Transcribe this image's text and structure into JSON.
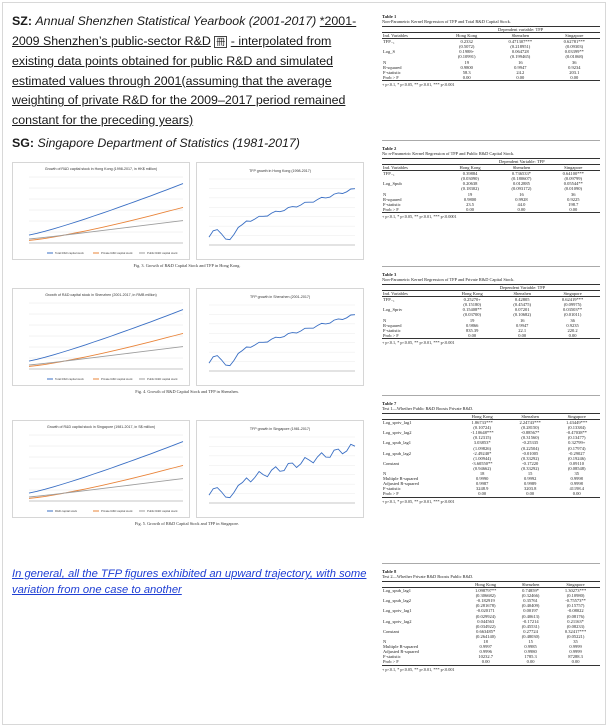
{
  "left": {
    "sz_label": "SZ:",
    "sz_source": "Annual Shenzhen Statistical Yearbook (2001-2017)",
    "sz_note_link": "*2001-2009 Shenzhen’s public-sector R&D",
    "sz_note_icon": "冊",
    "sz_note_rest": "- interpolated from existing data points obtained for public R&D and simulated estimated values through 2001(assuming that the average weighting of private R&D for the 2009–2017 period remained constant for the preceding years)",
    "sg_label": "SG:",
    "sg_source": "Singapore Department of Statistics (1981-2017)",
    "conclusion": "In general, all the TFP figures exhibited an upward trajectory, with some variation from one case to another"
  },
  "figures": [
    {
      "left_title": "Growth of R&D capital stock in Hong Kong (1998-2017, in HK$ million)",
      "right_title": "TFP growth in Hong Kong (1998-2017)",
      "caption": "Fig. 3.  Growth of R&D Capital Stock and TFP in Hong Kong.",
      "legend": [
        "Total R&D capital stock",
        "Private R&D capital stock",
        "Public R&D capital stock"
      ]
    },
    {
      "left_title": "Growth of R&D capital stock in Shenzhen (2001-2017, in RMB million)",
      "right_title": "TFP growth in Shenzhen (2001-2017)",
      "caption": "Fig. 4.  Growth of R&D Capital Stock and TFP in Shenzhen.",
      "legend": [
        "Total R&D capital stock",
        "Private R&D capital stock",
        "Public R&D capital stock"
      ]
    },
    {
      "left_title": "Growth of R&D capital stock in Singapore (1981-2017, in S$ million)",
      "right_title": "TFP growth in Singapore (1981-2017)",
      "caption": "Fig. 5.  Growth of R&D Capital Stock and TFP in Singapore.",
      "legend": [
        "R&D capital stock",
        "Private R&D capital stock",
        "Public R&D capital stock"
      ]
    }
  ],
  "colors": {
    "total": "#3a6fc4",
    "private": "#e9843a",
    "public": "#9e9e9e",
    "tfp": "#3a6fc4",
    "link": "#1f3fd4"
  },
  "tables": [
    {
      "title": "Table 1",
      "subtitle": "Non-Parametric Kernel Regression of TFP and Total R&D Capital Stock.",
      "dep": "Dependent variable: TFP",
      "cols": [
        "Ind. Variables",
        "Hong Kong",
        "Shenzhen",
        "Singapore"
      ],
      "rows": [
        [
          "TFP₋₁",
          "0.2332",
          "0.471307***",
          "0.62781***"
        ],
        [
          "",
          "(0.5072)",
          "(0.218951)",
          "(0.09303)"
        ],
        [
          "Log_S",
          "0.1988+",
          "0.064728",
          "0.03399**"
        ],
        [
          "",
          "(0.10991)",
          "(0.199465)",
          "(0.01068)"
        ],
        [
          "N",
          "19",
          "16",
          "36"
        ],
        [
          "R-squared",
          "0.9800",
          "0.9947",
          "0.9234"
        ],
        [
          "F-statistic",
          "58.3",
          "24.2",
          "203.1"
        ],
        [
          "Prob > F",
          "0.00",
          "0.00",
          "0.00"
        ]
      ],
      "note": "+ p<0.1, * p<0.05, ** p<0.01, *** p<0.001"
    },
    {
      "title": "Table 2",
      "subtitle": "No n-Parametric Kernel Regression of TFP and Public R&D Capital Stock.",
      "dep": "Dependent Variable: TFP",
      "cols": [
        "Ind. Variables",
        "Hong Kong",
        "Shenzhen",
        "Singapore"
      ],
      "rows": [
        [
          "TFP₋₁",
          "0.39884",
          "0.736533*",
          "0.64100***"
        ],
        [
          "",
          "(0.03090)",
          "(0.180607)",
          "(0.09799)"
        ],
        [
          "Log_Spub",
          "0.20638",
          "0.012885",
          "0.05544**"
        ],
        [
          "",
          "(0.18302)",
          "(0.093172)",
          "(0.01090)"
        ],
        [
          "N",
          "19",
          "16",
          "36"
        ],
        [
          "R-squared",
          "0.9800",
          "0.9928",
          "0.9225"
        ],
        [
          "F-statistic",
          "23.5",
          "44.0",
          "198.7"
        ],
        [
          "Prob > F",
          "0.00",
          "0.00",
          "0.00"
        ]
      ],
      "note": "+ p<0.1, * p<0.05, ** p<0.01, *** p<0.0001"
    },
    {
      "title": "Table 3",
      "subtitle": "Non-Parametric Kernel Regression of TFP and Private R&D Capital Stock.",
      "dep": "Dependent Variable: TFP",
      "cols": [
        "Ind. Variables",
        "Hong Kong",
        "Shenzhen",
        "Singapore"
      ],
      "rows": [
        [
          "TFP₋₁",
          "0.25270+",
          "0.42805",
          "0.62419***"
        ],
        [
          "",
          "(0.15180)",
          "(0.45475)",
          "(0.09975)"
        ],
        [
          "Log_Sprtv",
          "0.15408**",
          "0.07201",
          "0.03503**"
        ],
        [
          "",
          "(0.03700)",
          "(0.10682)",
          "(0.01011)"
        ],
        [
          "N",
          "19",
          "16",
          "36"
        ],
        [
          "R-squared",
          "0.9866",
          "0.9947",
          "0.9235"
        ],
        [
          "F-statistic",
          "835.39",
          "22.1",
          "220.2"
        ],
        [
          "Prob > F",
          "0.00",
          "0.00",
          "0.00"
        ]
      ],
      "note": "+ p<0.1, * p<0.05, ** p<0.01, *** p<0.001"
    },
    {
      "title": "Table 7",
      "subtitle": "Test 1—Whether Public R&D Boosts Private R&D.",
      "dep": "",
      "cols": [
        "",
        "Hong Kong",
        "Shenzhen",
        "Singapore"
      ],
      "rows": [
        [
          "Log_sprtv_lag1",
          "1.86733***",
          "2.24743***",
          "1.43449***"
        ],
        [
          "",
          "(0.10724)",
          "(0.28150)",
          "(0.13384)"
        ],
        [
          "Log_sprtv_lag2",
          "-1.10648***",
          "-0.88567*",
          "-0.47038**"
        ],
        [
          "",
          "(0.12315)",
          "(0.31560)",
          "(0.13477)"
        ],
        [
          "Log_spub_lag1",
          "3.03853*",
          "-0.25335",
          "0.32799+"
        ],
        [
          "",
          "(1.09826)",
          "(0.22504)",
          "(0.17974)"
        ],
        [
          "Log_spub_lag2",
          "-2.49240*",
          "-0.01005",
          "-0.29027"
        ],
        [
          "",
          "(1.00944)",
          "(0.33292)",
          "(0.19246)"
        ],
        [
          "Constant",
          "-3.60550**",
          "-0.17220",
          "0.09110"
        ],
        [
          "",
          "(0.94662)",
          "(0.33292)",
          "(0.08548)"
        ],
        [
          "N",
          "18",
          "15",
          "35"
        ],
        [
          "Multiple R-squared",
          "0.9990",
          "0.9992",
          "0.9998"
        ],
        [
          "Adjusted R-squared",
          "0.9987",
          "0.9989",
          "0.9998"
        ],
        [
          "F-statistic",
          "3248.9",
          "3203.8",
          "41198.4"
        ],
        [
          "Prob > F",
          "0.00",
          "0.00",
          "0.00"
        ]
      ],
      "note": "+ p<0.1, * p<0.05, ** p<0.01, *** p<0.001"
    },
    {
      "title": "Table 8",
      "subtitle": "Test 2—Whether Private R&D Boosts Public R&D.",
      "dep": "",
      "cols": [
        "",
        "Hong Kong",
        "Shenzhen",
        "Singapore"
      ],
      "rows": [
        [
          "Log_spub_lag1",
          "1.098797**",
          "0.74859*",
          "1.30273***"
        ],
        [
          "",
          "(0.306682)",
          "(0.32466)",
          "(0.10980)"
        ],
        [
          "Log_spub_lag2",
          "-0.182919",
          "0.35761",
          "-0.75573**"
        ],
        [
          "",
          "(0.281678)",
          "(0.40409)",
          "(0.15757)"
        ],
        [
          "Log_sprtv_lag1",
          "-0.020171",
          "0.00197",
          "-0.08022"
        ],
        [
          "",
          "(0.029924)",
          "(0.40613)",
          "(0.08176)"
        ],
        [
          "Log_sprtv_lag2",
          "0.044563",
          "-0.17214",
          "0.21163*"
        ],
        [
          "",
          "(0.034922)",
          "(0.45531)",
          "(0.08233)"
        ],
        [
          "Constant",
          "0.663485*",
          "0.27724",
          "0.32417***"
        ],
        [
          "",
          "(0.264140)",
          "(0.48030)",
          "(0.05221)"
        ],
        [
          "N",
          "18",
          "15",
          "35"
        ],
        [
          "Multiple R-squared",
          "0.9997",
          "0.9985",
          "0.9999"
        ],
        [
          "Adjusted R-squared",
          "0.9996",
          "0.9980",
          "0.9999"
        ],
        [
          "F-statistic",
          "10232.7",
          "1785.3",
          "87288.3"
        ],
        [
          "Prob > F",
          "0.00",
          "0.00",
          "0.00"
        ]
      ],
      "note": "+ p<0.1, * p<0.05, ** p<0.01, *** p<0.001"
    }
  ]
}
